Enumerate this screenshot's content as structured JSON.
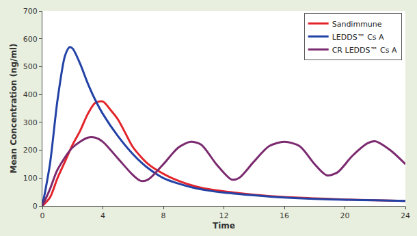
{
  "chart_data": {
    "type": "line",
    "x_label": "Time",
    "y_label": "Mean Concentration (ng/ml)",
    "xlim": [
      0,
      24
    ],
    "xticks": [
      0,
      4,
      8,
      12,
      16,
      20,
      24
    ],
    "ylim": [
      0,
      700
    ],
    "yticks": [
      0,
      100,
      200,
      300,
      400,
      500,
      600,
      700
    ],
    "grid": false,
    "legend": "upper right",
    "series": [
      {
        "name": "Sandimmune",
        "color": "#e3242b",
        "x": [
          0,
          0.5,
          1,
          1.5,
          2,
          2.5,
          3,
          3.5,
          4,
          4.5,
          5,
          5.5,
          6,
          7,
          8,
          9,
          10,
          11,
          12,
          14,
          16,
          18,
          20,
          22,
          24
        ],
        "values": [
          0,
          30,
          100,
          160,
          220,
          270,
          330,
          370,
          375,
          345,
          310,
          260,
          210,
          150,
          115,
          90,
          72,
          60,
          52,
          40,
          32,
          27,
          23,
          20,
          18
        ]
      },
      {
        "name": "LEDDS™ Cs A",
        "color": "#2342a6",
        "x": [
          0,
          0.5,
          1,
          1.5,
          1.8,
          2,
          2.5,
          3,
          3.5,
          4,
          5,
          6,
          7,
          8,
          9,
          10,
          11,
          12,
          14,
          16,
          18,
          20,
          22,
          24
        ],
        "values": [
          0,
          150,
          380,
          540,
          570,
          565,
          510,
          440,
          380,
          330,
          250,
          185,
          135,
          100,
          80,
          65,
          55,
          48,
          38,
          30,
          25,
          22,
          20,
          18
        ]
      },
      {
        "name": "CR LEDDS™ Cs A",
        "color": "#7b2a6f",
        "x": [
          0,
          0.5,
          1,
          2,
          3,
          3.5,
          4,
          5,
          6,
          6.5,
          7,
          8,
          9,
          9.8,
          10.5,
          11.5,
          12.5,
          13,
          14,
          15,
          16,
          17,
          18,
          18.8,
          19.5,
          20.5,
          21.5,
          22,
          23,
          24
        ],
        "values": [
          0,
          60,
          130,
          210,
          245,
          245,
          230,
          170,
          110,
          90,
          95,
          150,
          210,
          230,
          220,
          150,
          95,
          100,
          160,
          215,
          230,
          215,
          150,
          110,
          120,
          180,
          225,
          232,
          200,
          150
        ]
      }
    ]
  }
}
